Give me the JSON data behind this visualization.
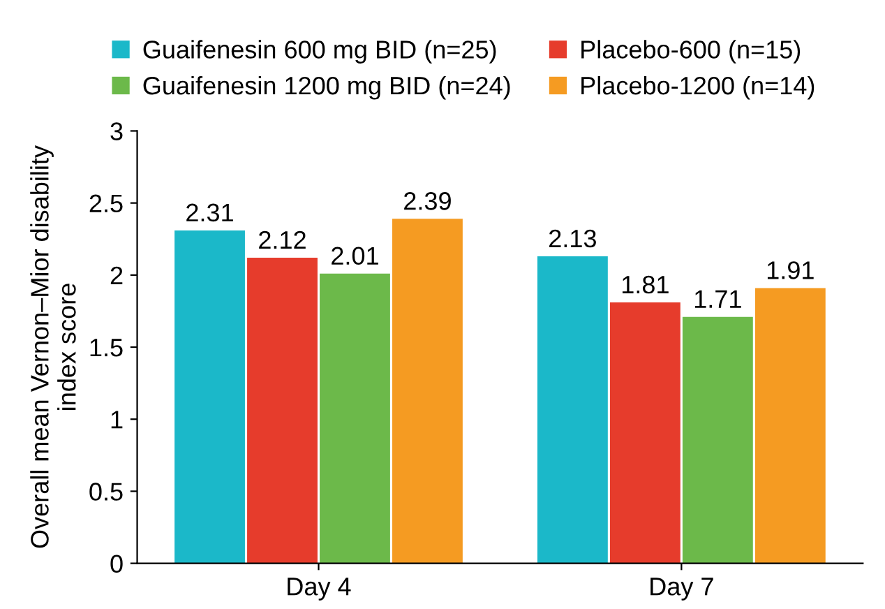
{
  "chart_data": {
    "type": "bar",
    "ylabel": "Overall mean Vernon–Mior disability\nindex score",
    "categories": [
      "Day 4",
      "Day 7"
    ],
    "series": [
      {
        "name": "Guaifenesin 600 mg BID (n=25)",
        "color": "#1bb8c9",
        "values": [
          2.31,
          2.13
        ]
      },
      {
        "name": "Placebo-600 (n=15)",
        "color": "#e63c2c",
        "values": [
          2.12,
          1.81
        ]
      },
      {
        "name": "Guaifenesin 1200 mg BID (n=24)",
        "color": "#6cb94a",
        "values": [
          2.01,
          1.71
        ]
      },
      {
        "name": "Placebo-1200 (n=14)",
        "color": "#f59b22",
        "values": [
          2.39,
          1.91
        ]
      }
    ],
    "ylim": [
      0,
      3
    ],
    "yticks": [
      0,
      0.5,
      1,
      1.5,
      2,
      2.5,
      3
    ],
    "data_labels": true,
    "grid": false,
    "legend": "top"
  }
}
